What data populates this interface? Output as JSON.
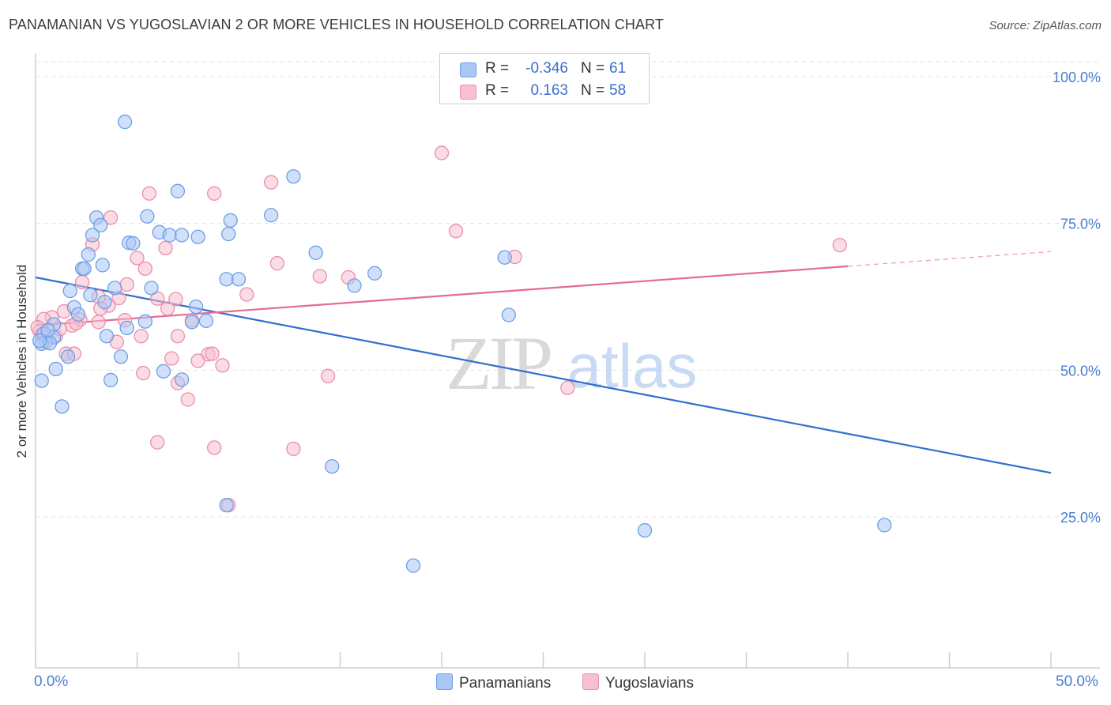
{
  "title": "PANAMANIAN VS YUGOSLAVIAN 2 OR MORE VEHICLES IN HOUSEHOLD CORRELATION CHART",
  "source": "Source: ZipAtlas.com",
  "watermark": {
    "zip": "ZIP",
    "atlas": "atlas"
  },
  "legend": {
    "rows": [
      {
        "r_label": "R =",
        "r_value": "-0.346",
        "n_label": "N =",
        "n_value": "61",
        "color": "#a9c7f5",
        "border": "#6f9ee6"
      },
      {
        "r_label": "R =",
        "r_value": "0.163",
        "n_label": "N =",
        "n_value": "58",
        "color": "#f7c0d0",
        "border": "#ea8eab"
      }
    ]
  },
  "bottom_legend": {
    "a": "Panamanians",
    "b": "Yugoslavians"
  },
  "x_labels": {
    "min": "0.0%",
    "max": "50.0%"
  },
  "chart_data": {
    "type": "scatter",
    "title": "PANAMANIAN VS YUGOSLAVIAN 2 OR MORE VEHICLES IN HOUSEHOLD CORRELATION CHART",
    "xlabel": "",
    "ylabel": "2 or more Vehicles in Household",
    "xlim": [
      0,
      50
    ],
    "ylim": [
      0,
      104
    ],
    "y_ticks": [
      {
        "value": 25,
        "label": "25.0%"
      },
      {
        "value": 50,
        "label": "50.0%"
      },
      {
        "value": 75,
        "label": "75.0%"
      },
      {
        "value": 100,
        "label": "100.0%"
      }
    ],
    "series": [
      {
        "name": "Panamanians",
        "color": "#6f9ee6",
        "fill": "#a9c7f5",
        "line_color": "#2f6fcf",
        "trend": {
          "x0": 0,
          "y0": 65.8,
          "x1": 50,
          "y1": 32.5
        },
        "points": [
          [
            4.4,
            92.3
          ],
          [
            12.7,
            83.0
          ],
          [
            7.0,
            80.5
          ],
          [
            3.0,
            76.0
          ],
          [
            5.5,
            76.2
          ],
          [
            11.6,
            76.4
          ],
          [
            3.2,
            74.7
          ],
          [
            9.6,
            75.5
          ],
          [
            6.1,
            73.5
          ],
          [
            6.6,
            73.0
          ],
          [
            7.2,
            73.0
          ],
          [
            8.0,
            72.7
          ],
          [
            9.5,
            73.2
          ],
          [
            2.8,
            73.0
          ],
          [
            4.6,
            71.7
          ],
          [
            4.8,
            71.6
          ],
          [
            2.6,
            69.7
          ],
          [
            13.8,
            70.0
          ],
          [
            23.1,
            69.2
          ],
          [
            3.3,
            67.9
          ],
          [
            2.3,
            67.3
          ],
          [
            2.4,
            67.3
          ],
          [
            16.7,
            66.5
          ],
          [
            9.4,
            65.5
          ],
          [
            10.0,
            65.5
          ],
          [
            15.7,
            64.4
          ],
          [
            3.9,
            64.0
          ],
          [
            5.7,
            64.0
          ],
          [
            1.7,
            63.5
          ],
          [
            2.7,
            62.8
          ],
          [
            3.4,
            61.6
          ],
          [
            7.9,
            60.8
          ],
          [
            1.9,
            60.7
          ],
          [
            2.1,
            59.5
          ],
          [
            23.3,
            59.4
          ],
          [
            0.9,
            57.8
          ],
          [
            5.4,
            58.3
          ],
          [
            7.7,
            58.2
          ],
          [
            8.4,
            58.4
          ],
          [
            4.5,
            57.2
          ],
          [
            0.4,
            56.2
          ],
          [
            0.9,
            55.6
          ],
          [
            3.5,
            55.8
          ],
          [
            0.5,
            54.8
          ],
          [
            0.3,
            54.5
          ],
          [
            0.7,
            54.6
          ],
          [
            1.6,
            52.3
          ],
          [
            4.2,
            52.3
          ],
          [
            1.0,
            50.2
          ],
          [
            6.3,
            49.8
          ],
          [
            0.3,
            48.2
          ],
          [
            3.7,
            48.3
          ],
          [
            7.2,
            48.4
          ],
          [
            1.3,
            43.8
          ],
          [
            14.6,
            33.6
          ],
          [
            9.4,
            27.0
          ],
          [
            30.0,
            22.7
          ],
          [
            41.8,
            23.6
          ],
          [
            18.6,
            16.7
          ],
          [
            0.2,
            55.0
          ],
          [
            0.6,
            56.8
          ]
        ]
      },
      {
        "name": "Yugoslavians",
        "color": "#ea8eab",
        "fill": "#f7c0d0",
        "line_color": "#e46b93",
        "trend": {
          "x0": 0,
          "y0": 57.6,
          "x1": 40,
          "y1": 67.7,
          "dash_to_x": 50,
          "dash_to_y": 70.2
        },
        "points": [
          [
            20.0,
            87.0
          ],
          [
            11.6,
            82.0
          ],
          [
            5.6,
            80.1
          ],
          [
            8.8,
            80.1
          ],
          [
            3.7,
            76.0
          ],
          [
            20.7,
            73.7
          ],
          [
            39.6,
            71.3
          ],
          [
            2.8,
            71.4
          ],
          [
            6.4,
            70.8
          ],
          [
            5.0,
            69.1
          ],
          [
            23.6,
            69.3
          ],
          [
            11.9,
            68.2
          ],
          [
            5.4,
            67.3
          ],
          [
            14.0,
            66.0
          ],
          [
            15.4,
            65.8
          ],
          [
            2.3,
            65.0
          ],
          [
            4.5,
            64.6
          ],
          [
            10.4,
            62.9
          ],
          [
            4.1,
            62.3
          ],
          [
            6.0,
            62.2
          ],
          [
            6.9,
            62.1
          ],
          [
            3.1,
            62.5
          ],
          [
            3.6,
            61.0
          ],
          [
            1.4,
            60.0
          ],
          [
            3.2,
            60.5
          ],
          [
            6.5,
            60.5
          ],
          [
            0.8,
            59.0
          ],
          [
            0.4,
            58.7
          ],
          [
            2.2,
            58.6
          ],
          [
            4.4,
            58.5
          ],
          [
            7.7,
            58.5
          ],
          [
            3.1,
            58.2
          ],
          [
            1.8,
            57.6
          ],
          [
            0.2,
            56.7
          ],
          [
            1.0,
            55.8
          ],
          [
            5.2,
            55.8
          ],
          [
            7.0,
            55.8
          ],
          [
            4.0,
            54.8
          ],
          [
            1.5,
            52.8
          ],
          [
            1.9,
            52.8
          ],
          [
            8.5,
            52.7
          ],
          [
            8.7,
            52.8
          ],
          [
            6.7,
            52.0
          ],
          [
            8.0,
            51.6
          ],
          [
            9.2,
            50.8
          ],
          [
            5.3,
            49.5
          ],
          [
            14.4,
            49.0
          ],
          [
            7.0,
            47.8
          ],
          [
            26.2,
            47.0
          ],
          [
            7.5,
            45.0
          ],
          [
            6.0,
            37.7
          ],
          [
            8.8,
            36.8
          ],
          [
            12.7,
            36.6
          ],
          [
            9.5,
            27.0
          ],
          [
            0.3,
            56.0
          ],
          [
            1.2,
            57.0
          ],
          [
            2.0,
            58.0
          ],
          [
            0.1,
            57.3
          ]
        ]
      }
    ]
  }
}
